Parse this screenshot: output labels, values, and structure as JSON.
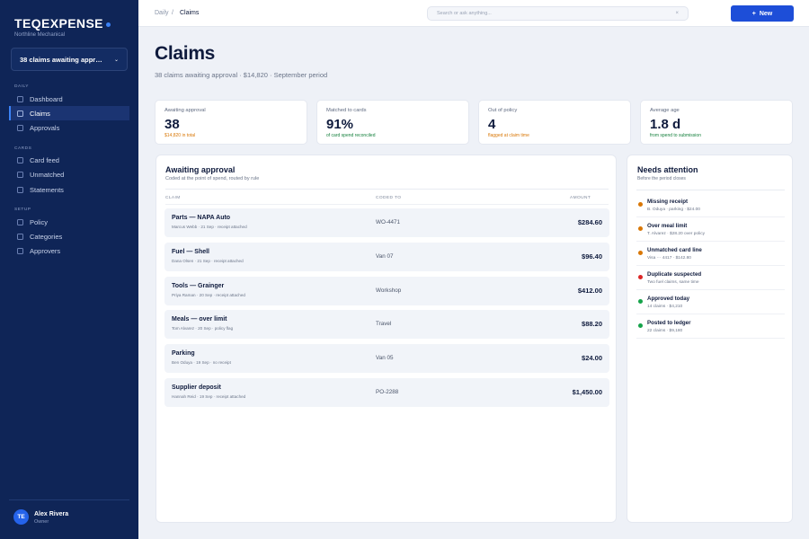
{
  "brand": {
    "name": "TEQEXPENSE",
    "company": "Northline Mechanical"
  },
  "sidebar": {
    "selector_value": "38 claims awaiting appro...",
    "sections": [
      {
        "label": "DAILY",
        "items": [
          {
            "label": "Dashboard"
          },
          {
            "label": "Claims",
            "active": true
          },
          {
            "label": "Approvals"
          }
        ]
      },
      {
        "label": "CARDS",
        "items": [
          {
            "label": "Card feed"
          },
          {
            "label": "Unmatched"
          },
          {
            "label": "Statements"
          }
        ]
      },
      {
        "label": "SETUP",
        "items": [
          {
            "label": "Policy"
          },
          {
            "label": "Categories"
          },
          {
            "label": "Approvers"
          }
        ]
      }
    ],
    "user": {
      "initials": "TE",
      "name": "Alex Rivera",
      "role": "Owner"
    }
  },
  "topbar": {
    "breadcrumb": {
      "root": "Daily",
      "separator": "/",
      "current": "Claims"
    },
    "search_placeholder": "Search or ask anything...",
    "search_clear": "×",
    "new_button": {
      "icon": "+",
      "label": "New"
    }
  },
  "page": {
    "title": "Claims",
    "subtitle": "38 claims awaiting approval · $14,820 · September period"
  },
  "stats": [
    {
      "label": "Awaiting approval",
      "value": "38",
      "note": "$14,820 in total",
      "note_color": "#d97706"
    },
    {
      "label": "Matched to cards",
      "value": "91%",
      "note": "of card spend reconciled",
      "note_color": "#15803d"
    },
    {
      "label": "Out of policy",
      "value": "4",
      "note": "flagged at claim time",
      "note_color": "#d97706"
    },
    {
      "label": "Average age",
      "value": "1.8 d",
      "note": "from spend to submission",
      "note_color": "#15803d"
    }
  ],
  "awaiting": {
    "title": "Awaiting approval",
    "subtitle": "Coded at the point of spend, routed by rule",
    "columns": {
      "claim": "CLAIM",
      "coded_to": "CODED TO",
      "amount": "AMOUNT"
    },
    "rows": [
      {
        "desc": "Parts — NAPA Auto",
        "meta": "Marcus Webb · 21 Sep · receipt attached",
        "coded": "WO-4471",
        "amount": "$284.60"
      },
      {
        "desc": "Fuel — Shell",
        "meta": "Dana Olsen · 21 Sep · receipt attached",
        "coded": "Van 07",
        "amount": "$96.40"
      },
      {
        "desc": "Tools — Grainger",
        "meta": "Priya Raman · 20 Sep · receipt attached",
        "coded": "Workshop",
        "amount": "$412.00"
      },
      {
        "desc": "Meals — over limit",
        "meta": "Tom Alvarez · 20 Sep · policy flag",
        "coded": "Travel",
        "amount": "$88.20"
      },
      {
        "desc": "Parking",
        "meta": "Ben Oduya · 19 Sep · no receipt",
        "coded": "Van 05",
        "amount": "$24.00"
      },
      {
        "desc": "Supplier deposit",
        "meta": "Hannah Reid · 19 Sep · receipt attached",
        "coded": "PO-2288",
        "amount": "$1,450.00"
      }
    ]
  },
  "attention": {
    "title": "Needs attention",
    "subtitle": "Before the period closes",
    "items": [
      {
        "title": "Missing receipt",
        "sub": "B. Oduya · parking · $24.00",
        "color": "#d97706"
      },
      {
        "title": "Over meal limit",
        "sub": "T. Alvarez · $28.20 over policy",
        "color": "#d97706"
      },
      {
        "title": "Unmatched card line",
        "sub": "Visa ··· 4417 · $142.80",
        "color": "#d97706"
      },
      {
        "title": "Duplicate suspected",
        "sub": "Two fuel claims, same time",
        "color": "#dc2626"
      },
      {
        "title": "Approved today",
        "sub": "14 claims · $4,210",
        "color": "#16a34a"
      },
      {
        "title": "Posted to ledger",
        "sub": "22 claims · $9,180",
        "color": "#16a34a"
      }
    ]
  },
  "colors": {
    "sidebar_bg": "#0f2557",
    "accent": "#1d4ed8",
    "warning": "#d97706",
    "danger": "#dc2626",
    "success": "#16a34a"
  }
}
